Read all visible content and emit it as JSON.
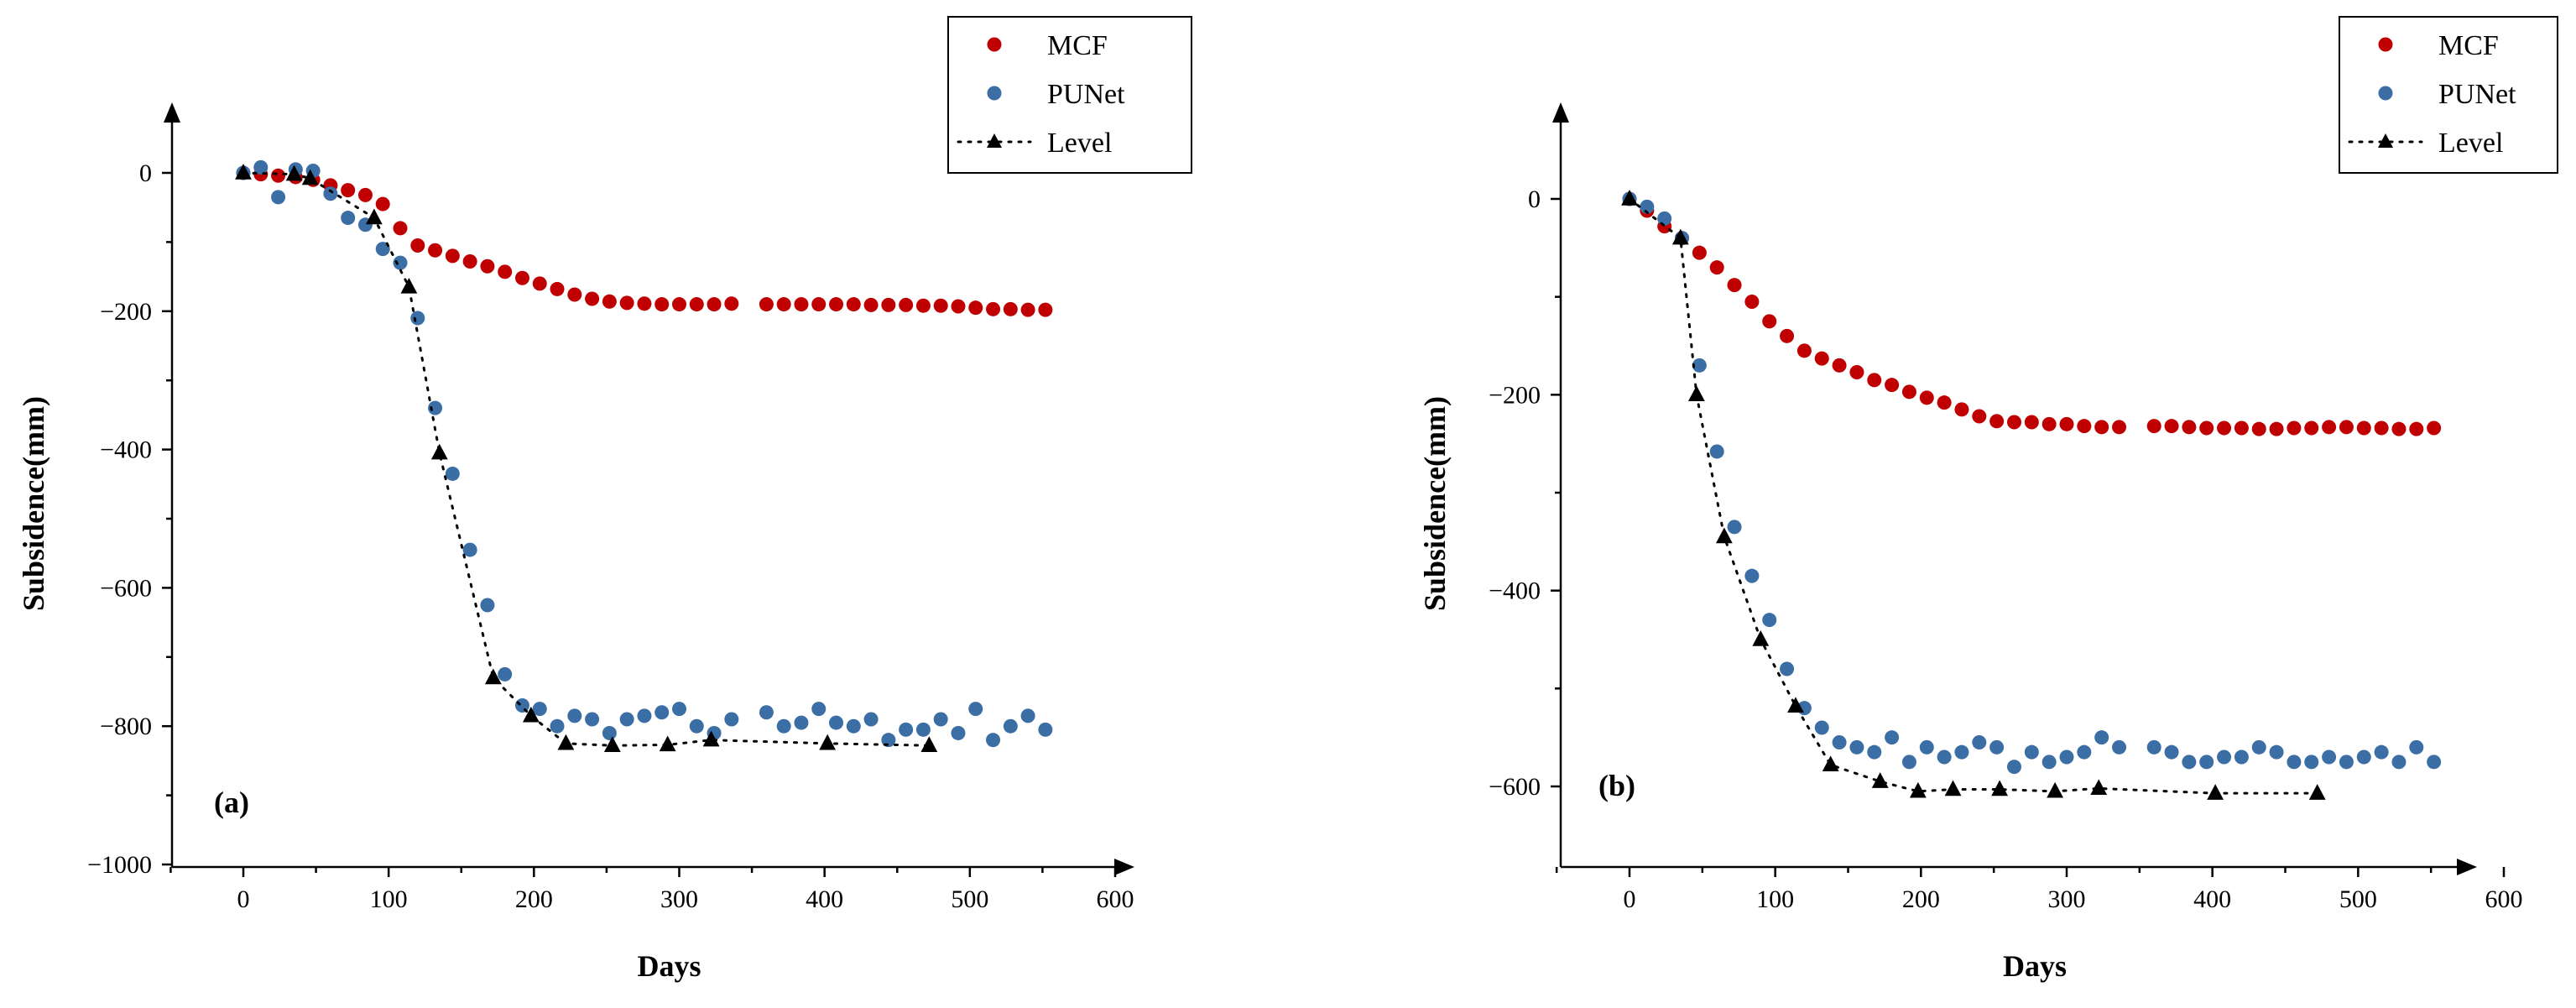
{
  "chart_data": [
    {
      "type": "scatter",
      "panel_label": "(a)",
      "xlabel": "Days",
      "ylabel": "Subsidence(mm)",
      "xlim": [
        -50,
        600
      ],
      "ylim": [
        -1000,
        90
      ],
      "xticks": [
        0,
        100,
        200,
        300,
        400,
        500,
        600
      ],
      "yticks": [
        0,
        -200,
        -400,
        -600,
        -800,
        -1000
      ],
      "x_tick_labels": [
        "0",
        "100",
        "200",
        "300",
        "400",
        "500",
        "600"
      ],
      "y_tick_labels": [
        "0",
        "−200",
        "−400",
        "−600",
        "−800",
        "−1000"
      ],
      "legend": {
        "position": "top-right",
        "entries": [
          "MCF",
          "PUNet",
          "Level"
        ]
      },
      "series": [
        {
          "name": "MCF",
          "marker": "circle",
          "color": "#c00000",
          "x": [
            0,
            12,
            24,
            36,
            48,
            60,
            72,
            84,
            96,
            108,
            120,
            132,
            144,
            156,
            168,
            180,
            192,
            204,
            216,
            228,
            240,
            252,
            264,
            276,
            288,
            300,
            312,
            324,
            336,
            360,
            372,
            384,
            396,
            408,
            420,
            432,
            444,
            456,
            468,
            480,
            492,
            504,
            516,
            528,
            540,
            552
          ],
          "y": [
            0,
            -2,
            -4,
            -6,
            -10,
            -18,
            -25,
            -32,
            -45,
            -80,
            -105,
            -112,
            -120,
            -128,
            -135,
            -143,
            -152,
            -160,
            -168,
            -176,
            -182,
            -186,
            -188,
            -189,
            -190,
            -190,
            -190,
            -190,
            -189,
            -190,
            -190,
            -190,
            -190,
            -190,
            -190,
            -191,
            -191,
            -191,
            -192,
            -192,
            -193,
            -195,
            -197,
            -197,
            -198,
            -198
          ]
        },
        {
          "name": "PUNet",
          "marker": "circle",
          "color": "#3a6ea5",
          "x": [
            0,
            12,
            24,
            36,
            48,
            60,
            72,
            84,
            96,
            108,
            120,
            132,
            144,
            156,
            168,
            180,
            192,
            204,
            216,
            228,
            240,
            252,
            264,
            276,
            288,
            300,
            312,
            324,
            336,
            360,
            372,
            384,
            396,
            408,
            420,
            432,
            444,
            456,
            468,
            480,
            492,
            504,
            516,
            528,
            540,
            552
          ],
          "y": [
            0,
            8,
            -35,
            5,
            3,
            -30,
            -65,
            -75,
            -110,
            -130,
            -210,
            -340,
            -435,
            -545,
            -625,
            -725,
            -770,
            -775,
            -800,
            -785,
            -790,
            -810,
            -790,
            -785,
            -780,
            -775,
            -800,
            -810,
            -790,
            -780,
            -800,
            -795,
            -775,
            -795,
            -800,
            -790,
            -820,
            -805,
            -805,
            -790,
            -810,
            -775,
            -820,
            -800,
            -785,
            -805
          ]
        },
        {
          "name": "Level",
          "marker": "triangle",
          "color": "#000000",
          "line": "dotted",
          "x": [
            0,
            35,
            46,
            90,
            114,
            135,
            172,
            198,
            222,
            254,
            292,
            322,
            402,
            472
          ],
          "y": [
            0,
            -2,
            -8,
            -65,
            -165,
            -405,
            -730,
            -785,
            -825,
            -828,
            -827,
            -820,
            -825,
            -828
          ]
        }
      ]
    },
    {
      "type": "scatter",
      "panel_label": "(b)",
      "xlabel": "Days",
      "ylabel": "Subsidence(mm)",
      "xlim": [
        -50,
        600
      ],
      "ylim": [
        -700,
        90
      ],
      "xticks": [
        0,
        100,
        200,
        300,
        400,
        500,
        600
      ],
      "yticks": [
        0,
        -200,
        -400,
        -600
      ],
      "x_tick_labels": [
        "0",
        "100",
        "200",
        "300",
        "400",
        "500",
        "600"
      ],
      "y_tick_labels": [
        "0",
        "−200",
        "−400",
        "−600"
      ],
      "legend": {
        "position": "top-right",
        "entries": [
          "MCF",
          "PUNet",
          "Level"
        ]
      },
      "series": [
        {
          "name": "MCF",
          "marker": "circle",
          "color": "#c00000",
          "x": [
            0,
            12,
            24,
            36,
            48,
            60,
            72,
            84,
            96,
            108,
            120,
            132,
            144,
            156,
            168,
            180,
            192,
            204,
            216,
            228,
            240,
            252,
            264,
            276,
            288,
            300,
            312,
            324,
            336,
            360,
            372,
            384,
            396,
            408,
            420,
            432,
            444,
            456,
            468,
            480,
            492,
            504,
            516,
            528,
            540,
            552
          ],
          "y": [
            0,
            -12,
            -28,
            -40,
            -55,
            -70,
            -88,
            -105,
            -125,
            -140,
            -155,
            -163,
            -170,
            -177,
            -185,
            -190,
            -197,
            -203,
            -208,
            -215,
            -222,
            -227,
            -228,
            -228,
            -230,
            -230,
            -232,
            -233,
            -233,
            -232,
            -232,
            -233,
            -234,
            -234,
            -234,
            -235,
            -235,
            -234,
            -234,
            -233,
            -233,
            -234,
            -234,
            -235,
            -235,
            -234
          ]
        },
        {
          "name": "PUNet",
          "marker": "circle",
          "color": "#3a6ea5",
          "x": [
            0,
            12,
            24,
            36,
            48,
            60,
            72,
            84,
            96,
            108,
            120,
            132,
            144,
            156,
            168,
            180,
            192,
            204,
            216,
            228,
            240,
            252,
            264,
            276,
            288,
            300,
            312,
            324,
            336,
            360,
            372,
            384,
            396,
            408,
            420,
            432,
            444,
            456,
            468,
            480,
            492,
            504,
            516,
            528,
            540,
            552
          ],
          "y": [
            0,
            -8,
            -20,
            -40,
            -170,
            -258,
            -335,
            -385,
            -430,
            -480,
            -520,
            -540,
            -555,
            -560,
            -565,
            -550,
            -575,
            -560,
            -570,
            -565,
            -555,
            -560,
            -580,
            -565,
            -575,
            -570,
            -565,
            -550,
            -560,
            -560,
            -565,
            -575,
            -575,
            -570,
            -570,
            -560,
            -565,
            -575,
            -575,
            -570,
            -575,
            -570,
            -565,
            -575,
            -560,
            -575
          ]
        },
        {
          "name": "Level",
          "marker": "triangle",
          "color": "#000000",
          "line": "dotted",
          "x": [
            0,
            35,
            46,
            65,
            90,
            114,
            138,
            172,
            198,
            222,
            254,
            292,
            322,
            402,
            472
          ],
          "y": [
            0,
            -40,
            -200,
            -345,
            -450,
            -518,
            -578,
            -595,
            -605,
            -603,
            -603,
            -605,
            -602,
            -607,
            -607
          ]
        }
      ]
    }
  ]
}
